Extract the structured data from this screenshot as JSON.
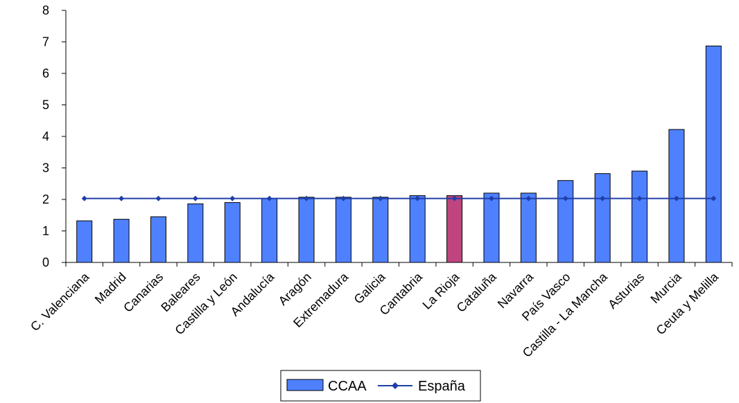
{
  "chart_data": {
    "type": "bar",
    "title": "",
    "xlabel": "",
    "ylabel": "",
    "ylim": [
      0,
      8
    ],
    "yticks": [
      0,
      1,
      2,
      3,
      4,
      5,
      6,
      7,
      8
    ],
    "grid": false,
    "legend_position": "bottom-center",
    "categories": [
      "C. Valenciana",
      "Madrid",
      "Canarias",
      "Baleares",
      "Castilla y León",
      "Andalucía",
      "Aragón",
      "Extremadura",
      "Galicia",
      "Cantabria",
      "La Rioja",
      "Cataluña",
      "Navarra",
      "País Vasco",
      "Castilla - La Mancha",
      "Asturias",
      "Murcia",
      "Ceuta y Melilla"
    ],
    "series": [
      {
        "name": "CCAA",
        "type": "bar",
        "color": "#4f81ff",
        "highlight_index": 10,
        "highlight_color": "#c0457f",
        "values": [
          1.32,
          1.37,
          1.45,
          1.86,
          1.9,
          2.03,
          2.07,
          2.07,
          2.07,
          2.12,
          2.12,
          2.2,
          2.2,
          2.6,
          2.82,
          2.9,
          4.22,
          6.87
        ]
      },
      {
        "name": "España",
        "type": "line",
        "color": "#1f3fa8",
        "values": [
          2.03,
          2.03,
          2.03,
          2.03,
          2.03,
          2.03,
          2.03,
          2.03,
          2.03,
          2.03,
          2.03,
          2.03,
          2.03,
          2.03,
          2.03,
          2.03,
          2.03,
          2.03
        ]
      }
    ]
  }
}
